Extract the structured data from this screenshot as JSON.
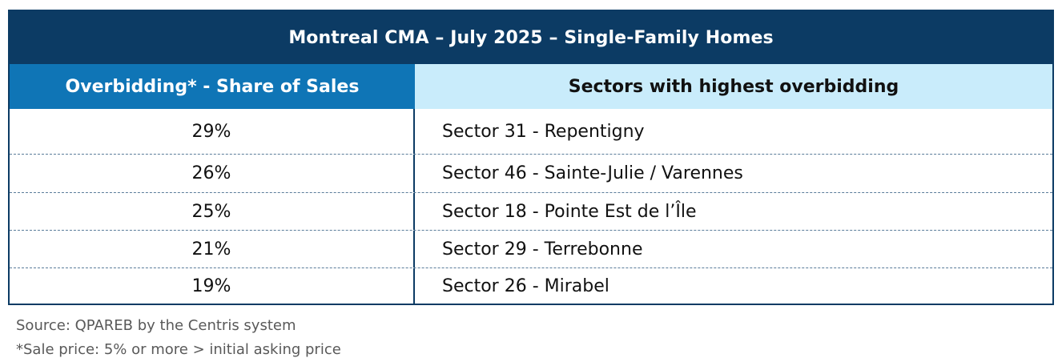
{
  "table": {
    "title": "Montreal CMA – July 2025 – Single-Family Homes",
    "header": {
      "left": "Overbidding* - Share of Sales",
      "right": "Sectors with highest overbidding"
    },
    "rows": [
      {
        "share": "29%",
        "sector": "Sector 31 - Repentigny"
      },
      {
        "share": "26%",
        "sector": "Sector 46 - Sainte-Julie / Varennes"
      },
      {
        "share": "25%",
        "sector": "Sector 18 - Pointe Est de l’Île"
      },
      {
        "share": "21%",
        "sector": "Sector 29 - Terrebonne"
      },
      {
        "share": "19%",
        "sector": "Sector 26 - Mirabel"
      }
    ]
  },
  "colors": {
    "title_bg": "#0c3b64",
    "left_header_bg": "#0f75b6",
    "right_header_bg": "#c9ecfb"
  },
  "footnotes": {
    "source": "Source: QPAREB by the Centris system",
    "definition": "*Sale price: 5% or more > initial asking price"
  }
}
